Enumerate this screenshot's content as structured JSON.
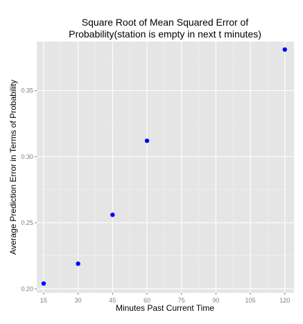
{
  "chart_data": {
    "type": "scatter",
    "title_line1": "Square Root of Mean Squared Error of",
    "title_line2": "Probability(station is empty in next t minutes)",
    "xlabel": "Minutes Past Current Time",
    "ylabel": "Average Prediction Error in Terms of Probability",
    "x": [
      15,
      30,
      45,
      60,
      120
    ],
    "y": [
      0.204,
      0.219,
      0.256,
      0.312,
      0.381
    ],
    "xlim": [
      12,
      124
    ],
    "ylim": [
      0.197,
      0.387
    ],
    "xticks": [
      15,
      30,
      45,
      60,
      75,
      90,
      105,
      120
    ],
    "yticks": [
      0.2,
      0.25,
      0.3,
      0.35
    ],
    "ytick_labels": [
      "0.20",
      "0.25",
      "0.30",
      "0.35"
    ],
    "grid": true,
    "colors": {
      "panel": "#e5e5e5",
      "grid_major": "#ffffff",
      "grid_minor": "#f2f2f2",
      "point": "#0000ff",
      "tick_text": "#7f7f7f",
      "text": "#000000"
    }
  }
}
